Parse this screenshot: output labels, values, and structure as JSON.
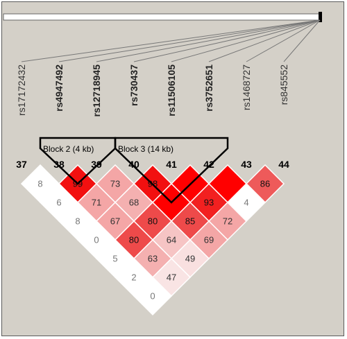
{
  "snps": [
    {
      "name": "rs17172432",
      "index": "37",
      "bold": false
    },
    {
      "name": "rs4947492",
      "index": "38",
      "bold": true
    },
    {
      "name": "rs12718945",
      "index": "39",
      "bold": true
    },
    {
      "name": "rs730437",
      "index": "40",
      "bold": true
    },
    {
      "name": "rs11506105",
      "index": "41",
      "bold": true
    },
    {
      "name": "rs3752651",
      "index": "42",
      "bold": true
    },
    {
      "name": "rs1468727",
      "index": "43",
      "bold": false
    },
    {
      "name": "rs845552",
      "index": "44",
      "bold": false
    }
  ],
  "blocks": [
    {
      "label": "Block 2 (4 kb)",
      "first_snp": "38",
      "last_snp": "39"
    },
    {
      "label": "Block 3 (14 kb)",
      "first_snp": "40",
      "last_snp": "42"
    }
  ],
  "ld_cells": [
    {
      "i": "37",
      "j": "38",
      "value": "8",
      "color": "#ffffff"
    },
    {
      "i": "38",
      "j": "39",
      "value": "99",
      "color": "#f21010"
    },
    {
      "i": "39",
      "j": "40",
      "value": "73",
      "color": "#f4a6a6"
    },
    {
      "i": "40",
      "j": "41",
      "value": "98",
      "color": "#f21010"
    },
    {
      "i": "41",
      "j": "42",
      "value": "",
      "color": "#ff0000"
    },
    {
      "i": "42",
      "j": "43",
      "value": "",
      "color": "#ff0000"
    },
    {
      "i": "43",
      "j": "44",
      "value": "86",
      "color": "#ee5a5a"
    },
    {
      "i": "37",
      "j": "39",
      "value": "6",
      "color": "#ffffff"
    },
    {
      "i": "38",
      "j": "40",
      "value": "71",
      "color": "#f4a6a6"
    },
    {
      "i": "39",
      "j": "41",
      "value": "68",
      "color": "#f4b0b0"
    },
    {
      "i": "40",
      "j": "42",
      "value": "",
      "color": "#ff0000"
    },
    {
      "i": "41",
      "j": "43",
      "value": "93",
      "color": "#f22020"
    },
    {
      "i": "42",
      "j": "44",
      "value": "4",
      "color": "#ffffff"
    },
    {
      "i": "37",
      "j": "40",
      "value": "8",
      "color": "#ffffff"
    },
    {
      "i": "38",
      "j": "41",
      "value": "67",
      "color": "#f4a6a6"
    },
    {
      "i": "39",
      "j": "42",
      "value": "80",
      "color": "#ee4a4a"
    },
    {
      "i": "40",
      "j": "43",
      "value": "85",
      "color": "#ee4a4a"
    },
    {
      "i": "41",
      "j": "44",
      "value": "72",
      "color": "#f4a6a6"
    },
    {
      "i": "37",
      "j": "41",
      "value": "0",
      "color": "#ffffff"
    },
    {
      "i": "38",
      "j": "42",
      "value": "80",
      "color": "#ee4a4a"
    },
    {
      "i": "39",
      "j": "43",
      "value": "64",
      "color": "#f6c4c4"
    },
    {
      "i": "40",
      "j": "44",
      "value": "69",
      "color": "#f4a6a6"
    },
    {
      "i": "37",
      "j": "42",
      "value": "5",
      "color": "#ffffff"
    },
    {
      "i": "38",
      "j": "43",
      "value": "63",
      "color": "#f4b0b0"
    },
    {
      "i": "39",
      "j": "44",
      "value": "49",
      "color": "#f9e0e0"
    },
    {
      "i": "37",
      "j": "43",
      "value": "2",
      "color": "#ffffff"
    },
    {
      "i": "38",
      "j": "44",
      "value": "47",
      "color": "#f9e4e4"
    },
    {
      "i": "37",
      "j": "44",
      "value": "0",
      "color": "#ffffff"
    }
  ]
}
